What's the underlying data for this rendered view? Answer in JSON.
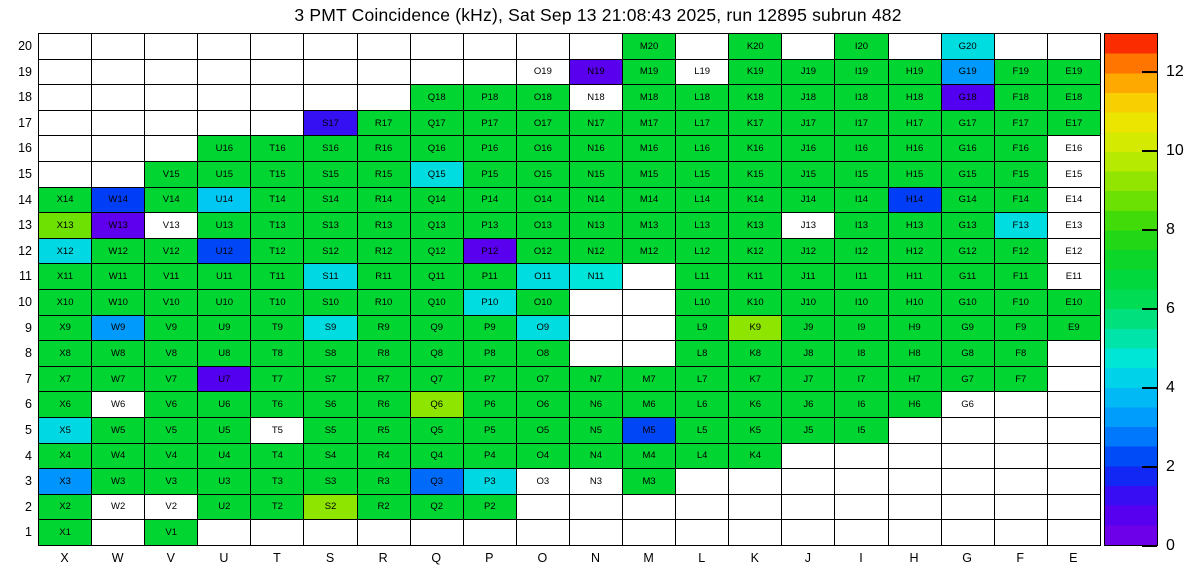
{
  "chart_data": {
    "type": "heatmap",
    "title": "3 PMT Coincidence (kHz), Sat Sep 13 21:08:43 2025, run 12895 subrun 482",
    "datetime": "Sat Sep 13 21:08:43 2025",
    "run": 12895,
    "subrun": 482,
    "value_unit": "kHz",
    "x_categories": [
      "X",
      "W",
      "V",
      "U",
      "T",
      "S",
      "R",
      "Q",
      "P",
      "O",
      "N",
      "M",
      "L",
      "K",
      "J",
      "I",
      "H",
      "G",
      "F",
      "E"
    ],
    "y_categories": [
      20,
      19,
      18,
      17,
      16,
      15,
      14,
      13,
      12,
      11,
      10,
      9,
      8,
      7,
      6,
      5,
      4,
      3,
      2,
      1
    ],
    "zlim": [
      0,
      13
    ],
    "colorbar_ticks": [
      0,
      2,
      4,
      6,
      8,
      10,
      12
    ],
    "colorbar_position": "right",
    "grid_lines": true,
    "colormap_stops": [
      {
        "v": 0,
        "color": "#7a00e6"
      },
      {
        "v": 1,
        "color": "#4b00f2"
      },
      {
        "v": 2,
        "color": "#0034f5"
      },
      {
        "v": 3,
        "color": "#008eff"
      },
      {
        "v": 4,
        "color": "#00c8f2"
      },
      {
        "v": 4.7,
        "color": "#00e6da"
      },
      {
        "v": 5.5,
        "color": "#00e392"
      },
      {
        "v": 6.3,
        "color": "#00dc50"
      },
      {
        "v": 7,
        "color": "#00d532"
      },
      {
        "v": 8,
        "color": "#2cd80c"
      },
      {
        "v": 9,
        "color": "#7ee300"
      },
      {
        "v": 10,
        "color": "#c8ec00"
      },
      {
        "v": 11,
        "color": "#f6e200"
      },
      {
        "v": 12,
        "color": "#ff9600"
      },
      {
        "v": 12.6,
        "color": "#ff4600"
      },
      {
        "v": 13,
        "color": "#f30000"
      }
    ],
    "cells_by_row": {
      "20": {
        "M": 7,
        "K": 7,
        "I": 7,
        "G": 4.5
      },
      "19": {
        "O": null,
        "N": 0.7,
        "M": 7,
        "L": null,
        "K": 7,
        "J": 7,
        "I": 7,
        "H": 7,
        "G": 3.2,
        "F": 7,
        "E": 7
      },
      "18": {
        "Q": 7,
        "P": 7,
        "O": 7,
        "N": null,
        "M": 7,
        "L": 7,
        "K": 7,
        "J": 7,
        "I": 7,
        "H": 7,
        "G": 0.8,
        "F": 7,
        "E": 7
      },
      "17": {
        "S": 1.3,
        "R": 7,
        "Q": 7,
        "P": 7,
        "O": 7,
        "N": 7,
        "M": 7,
        "L": 7,
        "K": 7,
        "J": 7,
        "I": 7,
        "H": 7,
        "G": 7,
        "F": 7,
        "E": 7
      },
      "16": {
        "U": 7,
        "T": 7,
        "S": 7,
        "R": 7,
        "Q": 7,
        "P": 7,
        "O": 7,
        "N": 7,
        "M": 7,
        "L": 7,
        "K": 7,
        "J": 7,
        "I": 7,
        "H": 7,
        "G": 7,
        "F": 7,
        "E": null
      },
      "15": {
        "V": 7,
        "U": 7,
        "T": 7,
        "S": 7,
        "R": 7,
        "Q": 4.5,
        "P": 7,
        "O": 7,
        "N": 7,
        "M": 7,
        "L": 7,
        "K": 7,
        "J": 7,
        "I": 7,
        "H": 7,
        "G": 7,
        "F": 7,
        "E": null
      },
      "14": {
        "X": 7,
        "W": 2.1,
        "V": 7,
        "U": 4.0,
        "T": 7,
        "S": 7,
        "R": 7,
        "Q": 7,
        "P": 7,
        "O": 7,
        "N": 7,
        "M": 7,
        "L": 7,
        "K": 7,
        "J": 7,
        "I": 7,
        "H": 2.1,
        "G": 7,
        "F": 7,
        "E": null
      },
      "13": {
        "X": 8.8,
        "W": 0.6,
        "V": null,
        "U": 7,
        "T": 7,
        "S": 7,
        "R": 7,
        "Q": 7,
        "P": 7,
        "O": 7,
        "N": 7,
        "M": 7,
        "L": 7,
        "K": 7,
        "J": null,
        "I": 7,
        "H": 7,
        "G": 7,
        "F": 4.5,
        "E": null
      },
      "12": {
        "X": 4.4,
        "W": 7,
        "V": 7,
        "U": 2.2,
        "T": 7,
        "S": 7,
        "R": 7,
        "Q": 7,
        "P": 0.7,
        "O": 7,
        "N": 7,
        "M": 7,
        "L": 7,
        "K": 7,
        "J": 7,
        "I": 7,
        "H": 7,
        "G": 7,
        "F": 7,
        "E": null
      },
      "11": {
        "X": 7,
        "W": 7,
        "V": 7,
        "U": 7,
        "T": 7,
        "S": 4.4,
        "R": 7,
        "Q": 7,
        "P": 7,
        "O": 4.5,
        "N": 4.7,
        "L": 7,
        "K": 7,
        "J": 7,
        "I": 7,
        "H": 7,
        "G": 7,
        "F": 7,
        "E": null
      },
      "10": {
        "X": 7,
        "W": 7,
        "V": 7,
        "U": 7,
        "T": 7,
        "S": 7,
        "R": 7,
        "Q": 7,
        "P": 4.5,
        "O": 7,
        "L": 7,
        "K": 7,
        "J": 7,
        "I": 7,
        "H": 7,
        "G": 7,
        "F": 7,
        "E": 7
      },
      "9": {
        "X": 7,
        "W": 3.2,
        "V": 7,
        "U": 7,
        "T": 7,
        "S": 4.5,
        "R": 7,
        "Q": 7,
        "P": 7,
        "O": 4.5,
        "L": 7,
        "K": 9.2,
        "J": 7,
        "I": 7,
        "H": 7,
        "G": 7,
        "F": 7,
        "E": 7
      },
      "8": {
        "X": 7,
        "W": 7,
        "V": 7,
        "U": 7,
        "T": 7,
        "S": 7,
        "R": 7,
        "Q": 7,
        "P": 7,
        "O": 7,
        "L": 7,
        "K": 7,
        "J": 7,
        "I": 7,
        "H": 7,
        "G": 7,
        "F": 7
      },
      "7": {
        "X": 7,
        "W": 7,
        "V": 7,
        "U": 0.8,
        "T": 7,
        "S": 7,
        "R": 7,
        "Q": 7,
        "P": 7,
        "O": 7,
        "N": 7,
        "M": 7,
        "L": 7,
        "K": 7,
        "J": 7,
        "I": 7,
        "H": 7,
        "G": 7,
        "F": 7
      },
      "6": {
        "X": 7,
        "W": null,
        "V": 7,
        "U": 7,
        "T": 7,
        "S": 7,
        "R": 7,
        "Q": 9.2,
        "P": 7,
        "O": 7,
        "N": 7,
        "M": 7,
        "L": 7,
        "K": 7,
        "J": 7,
        "I": 7,
        "H": 7,
        "G": null
      },
      "5": {
        "X": 4.4,
        "W": 7,
        "V": 7,
        "U": 7,
        "T": null,
        "S": 7,
        "R": 7,
        "Q": 7,
        "P": 7,
        "O": 7,
        "N": 7,
        "M": 2.2,
        "L": 7,
        "K": 7,
        "J": 7,
        "I": 7
      },
      "4": {
        "X": 7,
        "W": 7,
        "V": 7,
        "U": 7,
        "T": 7,
        "S": 7,
        "R": 7,
        "Q": 7,
        "P": 7,
        "O": 7,
        "N": 7,
        "M": 7,
        "L": 7,
        "K": 7
      },
      "3": {
        "X": 3.1,
        "W": 7,
        "V": 7,
        "U": 7,
        "T": 7,
        "S": 7,
        "R": 7,
        "Q": 2.6,
        "P": 4.4,
        "O": null,
        "N": null,
        "M": 7
      },
      "2": {
        "X": 7,
        "W": null,
        "V": null,
        "U": 7,
        "T": 7,
        "S": 9.2,
        "R": 7,
        "Q": 7,
        "P": 7
      },
      "1": {
        "X": 7,
        "V": 7
      }
    }
  }
}
